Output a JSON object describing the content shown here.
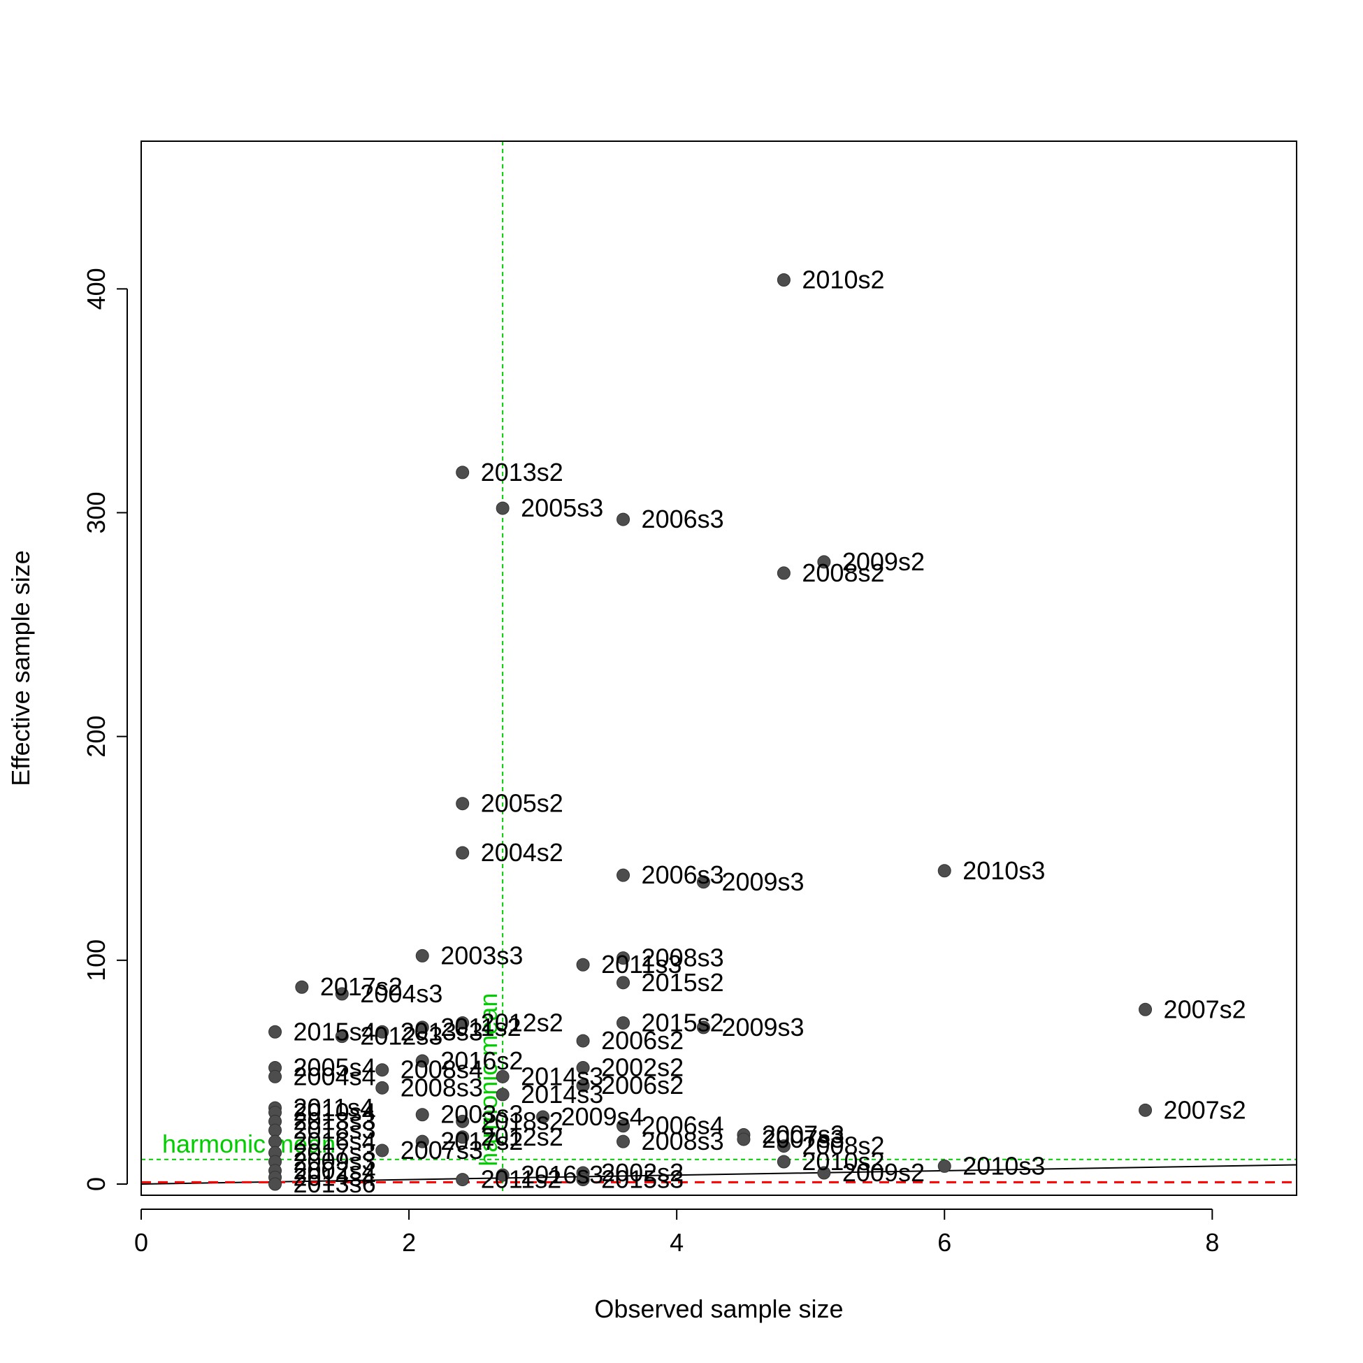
{
  "chart_data": {
    "type": "scatter",
    "xlabel": "Observed sample size",
    "ylabel": "Effective sample size",
    "xlim": [
      0,
      8.63
    ],
    "ylim": [
      -5,
      466
    ],
    "x_ticks": [
      0,
      2,
      4,
      6,
      8
    ],
    "y_ticks": [
      0,
      100,
      200,
      300,
      400
    ],
    "grid": false,
    "point_color": "#4d4d4d",
    "harmonic_mean_color": "#00cc00",
    "reference_line_color": "#ff0000",
    "fit_line_color": "#000000",
    "reference_lines": {
      "vertical_x": 2.7,
      "vertical_label": "harmonic mean",
      "horizontal_y": 11,
      "horizontal_label": "harmonic mean",
      "red_dashed_y": 0.8,
      "black_line": {
        "x": [
          0,
          8.63
        ],
        "y": [
          0,
          8.6
        ]
      }
    },
    "points": [
      {
        "x": 4.8,
        "y": 404,
        "label": "2010s2"
      },
      {
        "x": 2.4,
        "y": 318,
        "label": "2013s2"
      },
      {
        "x": 2.7,
        "y": 302,
        "label": "2005s3"
      },
      {
        "x": 3.6,
        "y": 297,
        "label": "2006s3"
      },
      {
        "x": 5.1,
        "y": 278,
        "label": "2009s2"
      },
      {
        "x": 4.8,
        "y": 273,
        "label": "2008s2"
      },
      {
        "x": 2.4,
        "y": 170,
        "label": "2005s2"
      },
      {
        "x": 2.4,
        "y": 148,
        "label": "2004s2"
      },
      {
        "x": 3.6,
        "y": 138,
        "label": "2006s3"
      },
      {
        "x": 4.2,
        "y": 135,
        "label": "2009s3"
      },
      {
        "x": 6.0,
        "y": 140,
        "label": "2010s3"
      },
      {
        "x": 2.1,
        "y": 102,
        "label": "2003s3"
      },
      {
        "x": 3.6,
        "y": 101,
        "label": "2008s3"
      },
      {
        "x": 3.3,
        "y": 98,
        "label": "2011s3"
      },
      {
        "x": 3.6,
        "y": 90,
        "label": "2015s2"
      },
      {
        "x": 1.2,
        "y": 88,
        "label": "2017s2"
      },
      {
        "x": 1.5,
        "y": 85,
        "label": "2004s3"
      },
      {
        "x": 7.5,
        "y": 78,
        "label": "2007s2"
      },
      {
        "x": 3.6,
        "y": 72,
        "label": "2015s2"
      },
      {
        "x": 4.2,
        "y": 70,
        "label": "2009s3"
      },
      {
        "x": 2.4,
        "y": 72,
        "label": "2012s2"
      },
      {
        "x": 2.1,
        "y": 70,
        "label": "2011s2"
      },
      {
        "x": 1.0,
        "y": 68,
        "label": "2015s4"
      },
      {
        "x": 1.8,
        "y": 68,
        "label": "2013s3"
      },
      {
        "x": 1.5,
        "y": 66,
        "label": "2012s3"
      },
      {
        "x": 3.3,
        "y": 64,
        "label": "2006s2"
      },
      {
        "x": 2.1,
        "y": 55,
        "label": "2016s2"
      },
      {
        "x": 3.3,
        "y": 52,
        "label": "2002s2"
      },
      {
        "x": 1.0,
        "y": 52,
        "label": "2005s4"
      },
      {
        "x": 1.8,
        "y": 51,
        "label": "2008s4"
      },
      {
        "x": 2.7,
        "y": 48,
        "label": "2014s3"
      },
      {
        "x": 1.0,
        "y": 48,
        "label": "2004s4"
      },
      {
        "x": 3.3,
        "y": 44,
        "label": "2006s2"
      },
      {
        "x": 1.8,
        "y": 43,
        "label": "2008s3"
      },
      {
        "x": 2.7,
        "y": 40,
        "label": "2014s3"
      },
      {
        "x": 7.5,
        "y": 33,
        "label": "2007s2"
      },
      {
        "x": 1.0,
        "y": 34,
        "label": "2011s4"
      },
      {
        "x": 1.0,
        "y": 32,
        "label": "2010s4"
      },
      {
        "x": 2.1,
        "y": 31,
        "label": "2003s3"
      },
      {
        "x": 3.0,
        "y": 30,
        "label": "2009s4"
      },
      {
        "x": 2.4,
        "y": 28,
        "label": "2018s2"
      },
      {
        "x": 1.0,
        "y": 28,
        "label": "2013s3"
      },
      {
        "x": 3.6,
        "y": 26,
        "label": "2006s4"
      },
      {
        "x": 1.0,
        "y": 24,
        "label": "2018s3"
      },
      {
        "x": 4.5,
        "y": 22,
        "label": "2007s3"
      },
      {
        "x": 4.5,
        "y": 20,
        "label": "2007s3"
      },
      {
        "x": 2.4,
        "y": 21,
        "label": "2012s2"
      },
      {
        "x": 3.6,
        "y": 19,
        "label": "2008s3"
      },
      {
        "x": 2.1,
        "y": 19,
        "label": "2017s2"
      },
      {
        "x": 1.0,
        "y": 19,
        "label": "2016s4"
      },
      {
        "x": 4.8,
        "y": 17,
        "label": "2008s2"
      },
      {
        "x": 1.8,
        "y": 15,
        "label": "2007s3"
      },
      {
        "x": 1.0,
        "y": 14,
        "label": "2017s3"
      },
      {
        "x": 1.0,
        "y": 10,
        "label": "2009s3"
      },
      {
        "x": 4.8,
        "y": 10,
        "label": "2010s2"
      },
      {
        "x": 6.0,
        "y": 8,
        "label": "2010s3"
      },
      {
        "x": 1.0,
        "y": 6,
        "label": "2002s4"
      },
      {
        "x": 3.3,
        "y": 5,
        "label": "2002s2"
      },
      {
        "x": 5.1,
        "y": 5,
        "label": "2009s2"
      },
      {
        "x": 2.7,
        "y": 4,
        "label": "2016s3"
      },
      {
        "x": 1.0,
        "y": 3,
        "label": "2014s4"
      },
      {
        "x": 2.4,
        "y": 2,
        "label": "2011s2"
      },
      {
        "x": 3.3,
        "y": 2,
        "label": "2015s3"
      },
      {
        "x": 1.0,
        "y": 0,
        "label": "2013s6"
      }
    ]
  }
}
